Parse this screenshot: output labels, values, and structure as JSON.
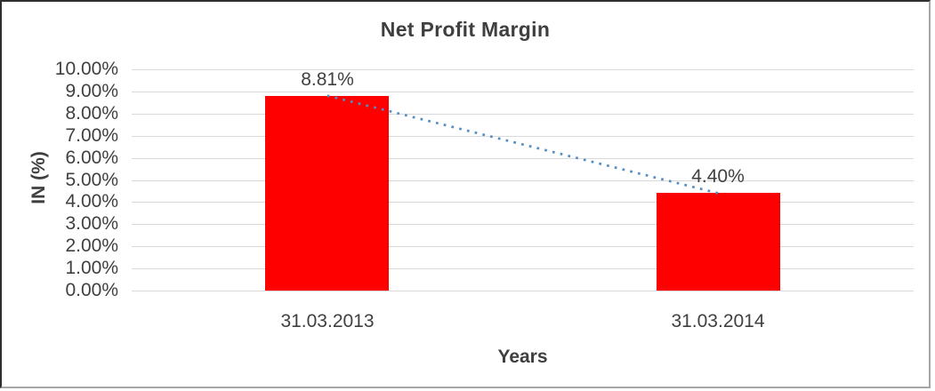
{
  "chart_data": {
    "type": "bar",
    "title": "Net Profit Margin",
    "xlabel": "Years",
    "ylabel": "IN (%)",
    "categories": [
      "31.03.2013",
      "31.03.2014"
    ],
    "values": [
      8.81,
      4.4
    ],
    "data_labels": [
      "8.81%",
      "4.40%"
    ],
    "ylim": [
      0,
      10
    ],
    "ytick_step": 1,
    "ytick_labels": [
      "0.00%",
      "1.00%",
      "2.00%",
      "3.00%",
      "4.00%",
      "5.00%",
      "6.00%",
      "7.00%",
      "8.00%",
      "9.00%",
      "10.00%"
    ],
    "grid": true,
    "legend": "none",
    "trendline": {
      "type": "linear",
      "style": "dotted",
      "from_value": 8.81,
      "to_value": 4.4
    },
    "colors": {
      "bar": "#fe0000",
      "trendline": "#538dc5",
      "gridline": "#d9d9d9",
      "text": "#404040",
      "title_text": "#3f3f3f"
    }
  }
}
